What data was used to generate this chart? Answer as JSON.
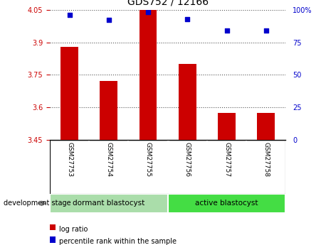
{
  "title": "GDS752 / 12166",
  "samples": [
    "GSM27753",
    "GSM27754",
    "GSM27755",
    "GSM27756",
    "GSM27757",
    "GSM27758"
  ],
  "log_ratios": [
    3.88,
    3.72,
    4.05,
    3.8,
    3.575,
    3.575
  ],
  "percentile_ranks": [
    96,
    92,
    98,
    93,
    84,
    84
  ],
  "baseline": 3.45,
  "ylim_left": [
    3.45,
    4.05
  ],
  "ylim_right": [
    0,
    100
  ],
  "yticks_left": [
    3.45,
    3.6,
    3.75,
    3.9,
    4.05
  ],
  "yticks_right": [
    0,
    25,
    50,
    75,
    100
  ],
  "ytick_labels_left": [
    "3.45",
    "3.6",
    "3.75",
    "3.9",
    "4.05"
  ],
  "ytick_labels_right": [
    "0",
    "25",
    "50",
    "75",
    "100%"
  ],
  "bar_color": "#cc0000",
  "scatter_color": "#0000cc",
  "bar_width": 0.45,
  "groups": [
    {
      "label": "dormant blastocyst",
      "indices": [
        0,
        1,
        2
      ],
      "color": "#aaddaa"
    },
    {
      "label": "active blastocyst",
      "indices": [
        3,
        4,
        5
      ],
      "color": "#44dd44"
    }
  ],
  "group_label": "development stage",
  "legend": [
    {
      "label": "log ratio",
      "color": "#cc0000"
    },
    {
      "label": "percentile rank within the sample",
      "color": "#0000cc"
    }
  ],
  "dotted_line_color": "#555555",
  "tick_color_left": "#cc0000",
  "tick_color_right": "#0000cc",
  "plot_bg_color": "#ffffff",
  "sample_label_bg": "#cccccc",
  "fig_width": 4.51,
  "fig_height": 3.45
}
